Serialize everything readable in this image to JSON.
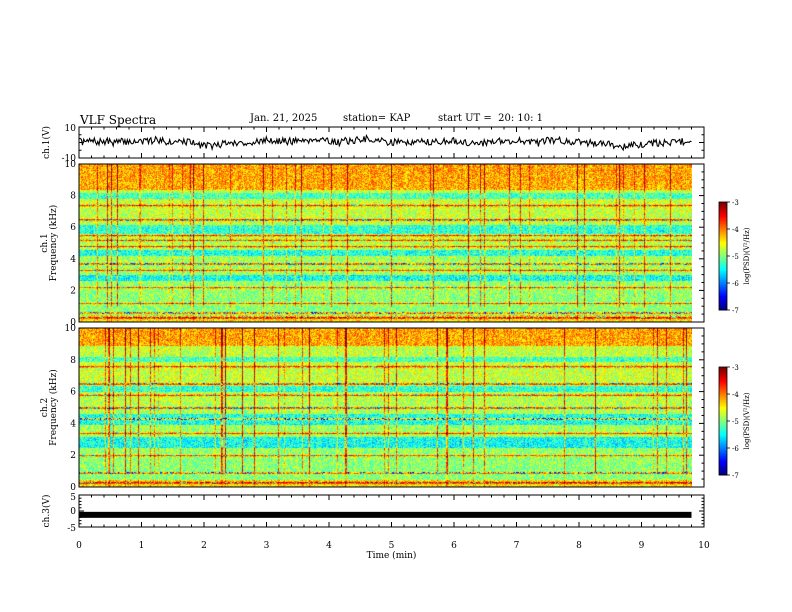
{
  "header": {
    "title": "VLF Spectra",
    "date": "Jan. 21, 2025",
    "station": "station= KAP",
    "start_ut": "start UT =  20: 10: 1"
  },
  "chart_data": [
    {
      "type": "line",
      "panel": "ch1-waveform",
      "ylabel": "ch.1(V)",
      "ylim": [
        -10,
        10
      ],
      "yticks": [
        "10",
        "-10"
      ],
      "x_range_min": [
        0,
        9.8
      ],
      "seed": 7
    },
    {
      "type": "heatmap",
      "panel": "ch1-spectrogram",
      "ylabel_line1": "ch.1",
      "ylabel_line2": "Frequency (kHz)",
      "ylim": [
        0,
        10
      ],
      "yticks": [
        "0",
        "2",
        "4",
        "6",
        "8",
        "10"
      ],
      "x_range_min": [
        0,
        9.8
      ],
      "colorbar": {
        "label": "log(PSD)(V²/Hz)",
        "range": [
          -7,
          -3
        ],
        "ticks": [
          "-7",
          "-6",
          "-5",
          "-4",
          "-3"
        ]
      },
      "noise_bands_khz": [
        0.3,
        0.6,
        1.2,
        2.2,
        3.3,
        3.7,
        4.8,
        5.2,
        5.5,
        6.5,
        7.4
      ],
      "low_level_bands_khz": [
        [
          2.6,
          3.0
        ],
        [
          4.2,
          4.6
        ],
        [
          5.6,
          6.2
        ],
        [
          7.8,
          8.4
        ]
      ],
      "seed": 11
    },
    {
      "type": "heatmap",
      "panel": "ch2-spectrogram",
      "ylabel_line1": "ch.2",
      "ylabel_line2": "Frequency (kHz)",
      "ylim": [
        0,
        10
      ],
      "yticks": [
        "0",
        "2",
        "4",
        "6",
        "8",
        "10"
      ],
      "x_range_min": [
        0,
        9.8
      ],
      "colorbar": {
        "label": "log(PSD)(V²/Hz)",
        "range": [
          -7,
          -3
        ],
        "ticks": [
          "-7",
          "-6",
          "-5",
          "-4",
          "-3"
        ]
      },
      "noise_bands_khz": [
        0.3,
        0.9,
        2.0,
        3.4,
        4.3,
        5.0,
        5.8,
        6.5,
        7.6
      ],
      "low_level_bands_khz": [
        [
          2.5,
          3.2
        ],
        [
          3.9,
          4.6
        ],
        [
          6.0,
          6.4
        ],
        [
          7.9,
          8.9
        ]
      ],
      "seed": 23
    },
    {
      "type": "line",
      "panel": "ch3-waveform",
      "ylabel": "ch.3(V)",
      "ylim": [
        -5,
        5
      ],
      "yticks": [
        "5",
        "0",
        "-5"
      ],
      "x_range_min": [
        0,
        9.8
      ],
      "constant_value": -1.2
    }
  ],
  "time_axis": {
    "xlabel": "Time (min)",
    "xlim": [
      0,
      10
    ],
    "ticks": [
      "0",
      "1",
      "2",
      "3",
      "4",
      "5",
      "6",
      "7",
      "8",
      "9",
      "10"
    ]
  }
}
